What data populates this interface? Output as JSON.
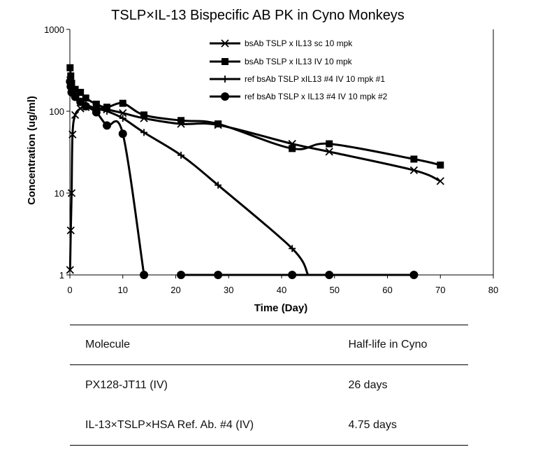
{
  "chart_data": {
    "type": "line",
    "title": "TSLP×IL-13 Bispecific AB PK in Cyno Monkeys",
    "xlabel": "Time (Day)",
    "ylabel": "Concentration (ug/ml)",
    "xlim": [
      0,
      80
    ],
    "ylim": [
      1,
      1000
    ],
    "yscale": "log",
    "xticks": [
      0,
      10,
      20,
      30,
      40,
      50,
      60,
      70,
      80
    ],
    "yticks": [
      1,
      10,
      100,
      1000
    ],
    "xtick_labels": [
      "0",
      "10",
      "20",
      "30",
      "40",
      "50",
      "60",
      "70",
      "80"
    ],
    "ytick_labels": [
      "1",
      "10",
      "100",
      "1000"
    ],
    "grid": false,
    "legend_position": "top-right",
    "series": [
      {
        "name": "bsAb TSLP x IL13 sc 10 mpk",
        "marker": "x",
        "x": [
          0.04,
          0.17,
          0.33,
          0.5,
          1,
          2,
          3,
          5,
          7,
          10,
          14,
          21,
          28,
          42,
          49,
          65,
          70
        ],
        "y": [
          1.15,
          3.5,
          10,
          52,
          90,
          108,
          112,
          110,
          105,
          95,
          82,
          70,
          68,
          40,
          32,
          19,
          14
        ]
      },
      {
        "name": "bsAb TSLP x IL13 IV 10 mpk",
        "marker": "square",
        "x": [
          0.04,
          0.17,
          0.33,
          1,
          2,
          3,
          5,
          7,
          10,
          14,
          21,
          28,
          42,
          49,
          65,
          70
        ],
        "y": [
          340,
          270,
          220,
          185,
          170,
          145,
          122,
          112,
          125,
          90,
          77,
          70,
          35,
          40,
          26,
          22
        ]
      },
      {
        "name": "ref bsAb TSLP xIL13 #4 IV 10 mpk #1",
        "marker": "plus",
        "x": [
          0.04,
          0.17,
          0.33,
          1,
          2,
          3,
          5,
          7,
          10,
          14,
          21,
          28,
          42,
          45
        ],
        "y": [
          260,
          210,
          180,
          150,
          130,
          120,
          108,
          100,
          82,
          55,
          29,
          12.5,
          2.1,
          1
        ]
      },
      {
        "name": "ref bsAb TSLP x IL13 #4 IV 10 mpk #2",
        "marker": "circle",
        "x": [
          0.04,
          0.17,
          0.33,
          1,
          2,
          3,
          5,
          7,
          10,
          14
        ],
        "y": [
          230,
          200,
          170,
          150,
          130,
          115,
          97,
          67,
          53,
          1
        ],
        "x2": [
          21,
          28,
          42,
          49,
          65
        ],
        "y2": [
          1,
          1,
          1,
          1,
          1
        ]
      }
    ]
  },
  "table": {
    "headers": [
      "Molecule",
      "Half-life in Cyno"
    ],
    "rows": [
      [
        "PX128-JT11 (IV)",
        "26 days"
      ],
      [
        "IL-13×TSLP×HSA Ref. Ab. #4 (IV)",
        "4.75 days"
      ]
    ]
  }
}
